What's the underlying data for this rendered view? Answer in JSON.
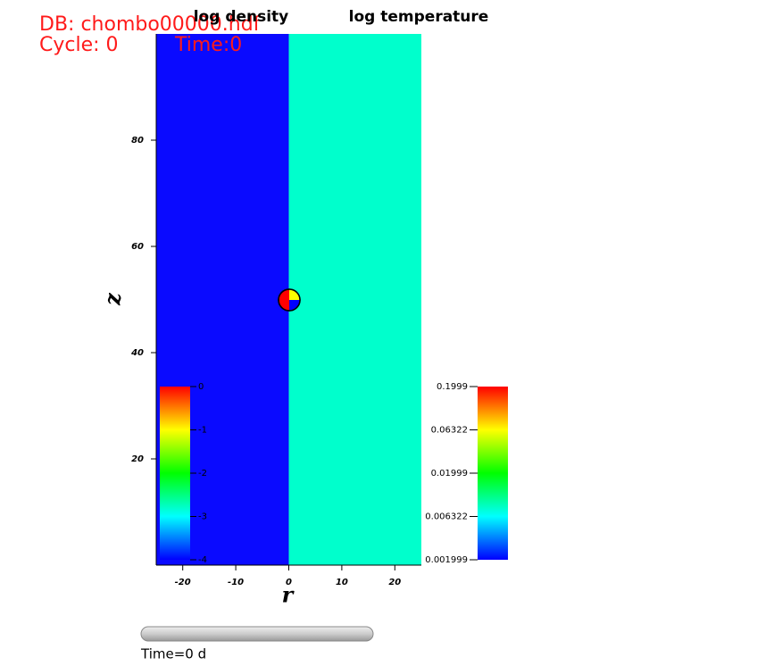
{
  "chart_data": {
    "type": "field",
    "db_label": "DB: chombo00000.hdf",
    "cycle": "Cycle: 0",
    "time": "Time:0",
    "xlabel": "r",
    "ylabel": "z",
    "xlim": [
      -25,
      25
    ],
    "ylim": [
      0,
      100
    ],
    "xticks": [
      -20,
      -10,
      0,
      10,
      20
    ],
    "yticks": [
      20,
      40,
      60,
      80
    ],
    "plots": [
      {
        "name": "log density",
        "color": "#0a0aff",
        "colorbar": {
          "range": [
            -4,
            0
          ],
          "log": false,
          "ticks": [
            0,
            -1,
            -2,
            -3,
            -4
          ]
        }
      },
      {
        "name": "log temperature",
        "color": "#00ffcc",
        "colorbar": {
          "range": [
            0.001999,
            0.1999
          ],
          "log": true,
          "ticks": [
            0.1999,
            0.06322,
            0.01999,
            0.006322,
            0.001999
          ]
        }
      }
    ],
    "slider_label": "Time=0 d"
  }
}
